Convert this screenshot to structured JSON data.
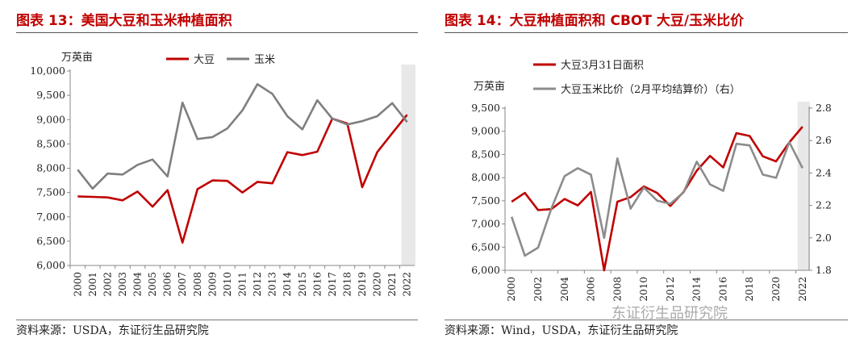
{
  "left": {
    "title": "图表 13：美国大豆和玉米种植面积",
    "source": "资料来源：USDA，东证衍生品研究院"
  },
  "right": {
    "title": "图表 14：大豆种植面积和 CBOT 大豆/玉米比价",
    "source": "资料来源：Wind，USDA，东证衍生品研究院"
  },
  "watermark": "东证衍生品研究院",
  "chart_data": [
    {
      "type": "line",
      "ylabel": "万英亩",
      "ylim": [
        6000,
        10000
      ],
      "yticks": [
        "6,000",
        "6,500",
        "7,000",
        "7,500",
        "8,000",
        "8,500",
        "9,000",
        "9,500",
        "10,000"
      ],
      "x": [
        "2000",
        "2001",
        "2002",
        "2003",
        "2004",
        "2005",
        "2006",
        "2007",
        "2008",
        "2009",
        "2010",
        "2011",
        "2012",
        "2013",
        "2014",
        "2015",
        "2016",
        "2017",
        "2018",
        "2019",
        "2020",
        "2021",
        "2022"
      ],
      "series": [
        {
          "name": "大豆",
          "color": "#c00000",
          "values": [
            7420,
            7410,
            7400,
            7340,
            7520,
            7210,
            7550,
            6470,
            7570,
            7750,
            7740,
            7500,
            7720,
            7690,
            8330,
            8270,
            8340,
            9020,
            8920,
            7610,
            8330,
            8720,
            9100
          ]
        },
        {
          "name": "玉米",
          "color": "#7f7f7f",
          "values": [
            7970,
            7580,
            7890,
            7870,
            8070,
            8180,
            7830,
            9350,
            8600,
            8640,
            8820,
            9190,
            9730,
            9530,
            9070,
            8800,
            9400,
            9020,
            8900,
            8970,
            9070,
            9340,
            8950
          ]
        }
      ],
      "legend": "top-center",
      "highlight_last_year": true
    },
    {
      "type": "line",
      "ylabel": "万英亩",
      "ylim": [
        6000,
        9500
      ],
      "y2lim": [
        1.8,
        2.8
      ],
      "yticks": [
        "6,000",
        "6,500",
        "7,000",
        "7,500",
        "8,000",
        "8,500",
        "9,000",
        "9,500"
      ],
      "y2ticks": [
        "1.8",
        "2.0",
        "2.2",
        "2.4",
        "2.6",
        "2.8"
      ],
      "x": [
        "2000",
        "2001",
        "2002",
        "2003",
        "2004",
        "2005",
        "2006",
        "2007",
        "2008",
        "2009",
        "2010",
        "2011",
        "2012",
        "2013",
        "2014",
        "2015",
        "2016",
        "2017",
        "2018",
        "2019",
        "2020",
        "2021",
        "2022"
      ],
      "series": [
        {
          "name": "大豆3月31日面积",
          "axis": "left",
          "color": "#c00000",
          "values": [
            7480,
            7670,
            7300,
            7320,
            7540,
            7400,
            7690,
            6000,
            7480,
            7580,
            7810,
            7670,
            7390,
            7690,
            8150,
            8470,
            8220,
            8960,
            8900,
            8460,
            8350,
            8760,
            9100
          ]
        },
        {
          "name": "大豆玉米比价（2月平均结算价）（右）",
          "axis": "right",
          "color": "#8c8c8c",
          "values": [
            2.13,
            1.89,
            1.94,
            2.18,
            2.38,
            2.43,
            2.39,
            2.0,
            2.49,
            2.18,
            2.31,
            2.23,
            2.21,
            2.28,
            2.47,
            2.33,
            2.29,
            2.58,
            2.57,
            2.39,
            2.37,
            2.59,
            2.43
          ]
        }
      ],
      "legend": "top-left",
      "highlight_last_year": true
    }
  ]
}
